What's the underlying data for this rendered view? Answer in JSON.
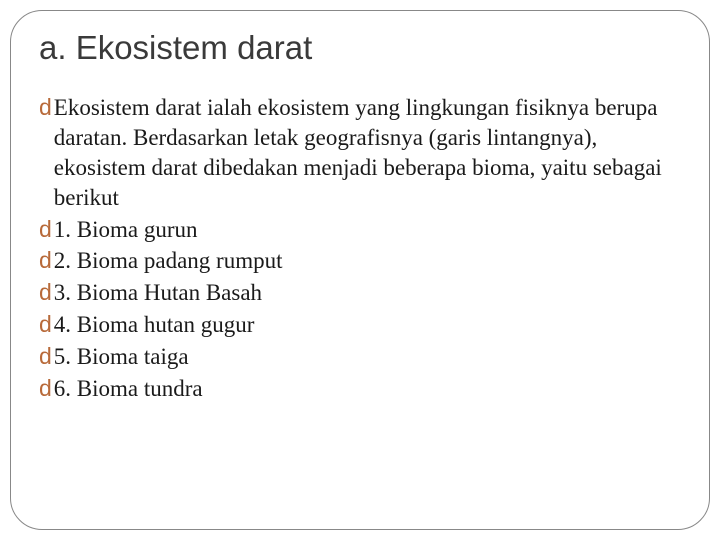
{
  "slide": {
    "title": "a. Ekosistem darat",
    "title_color": "#3a3a3a",
    "title_fontsize": 33,
    "body_fontsize": 23,
    "body_color": "#1a1a1a",
    "bullet_color": "#b86a3a",
    "bullet_glyph": "d",
    "border_color": "#888888",
    "border_radius": 32,
    "background_color": "#ffffff",
    "items": [
      "Ekosistem darat ialah ekosistem yang lingkungan fisiknya berupa daratan. Berdasarkan letak geografisnya (garis lintangnya), ekosistem darat dibedakan menjadi beberapa bioma, yaitu sebagai berikut",
      "1. Bioma gurun",
      "2. Bioma padang rumput",
      "3. Bioma Hutan Basah",
      "4. Bioma hutan gugur",
      "5. Bioma taiga",
      "6. Bioma tundra"
    ]
  }
}
